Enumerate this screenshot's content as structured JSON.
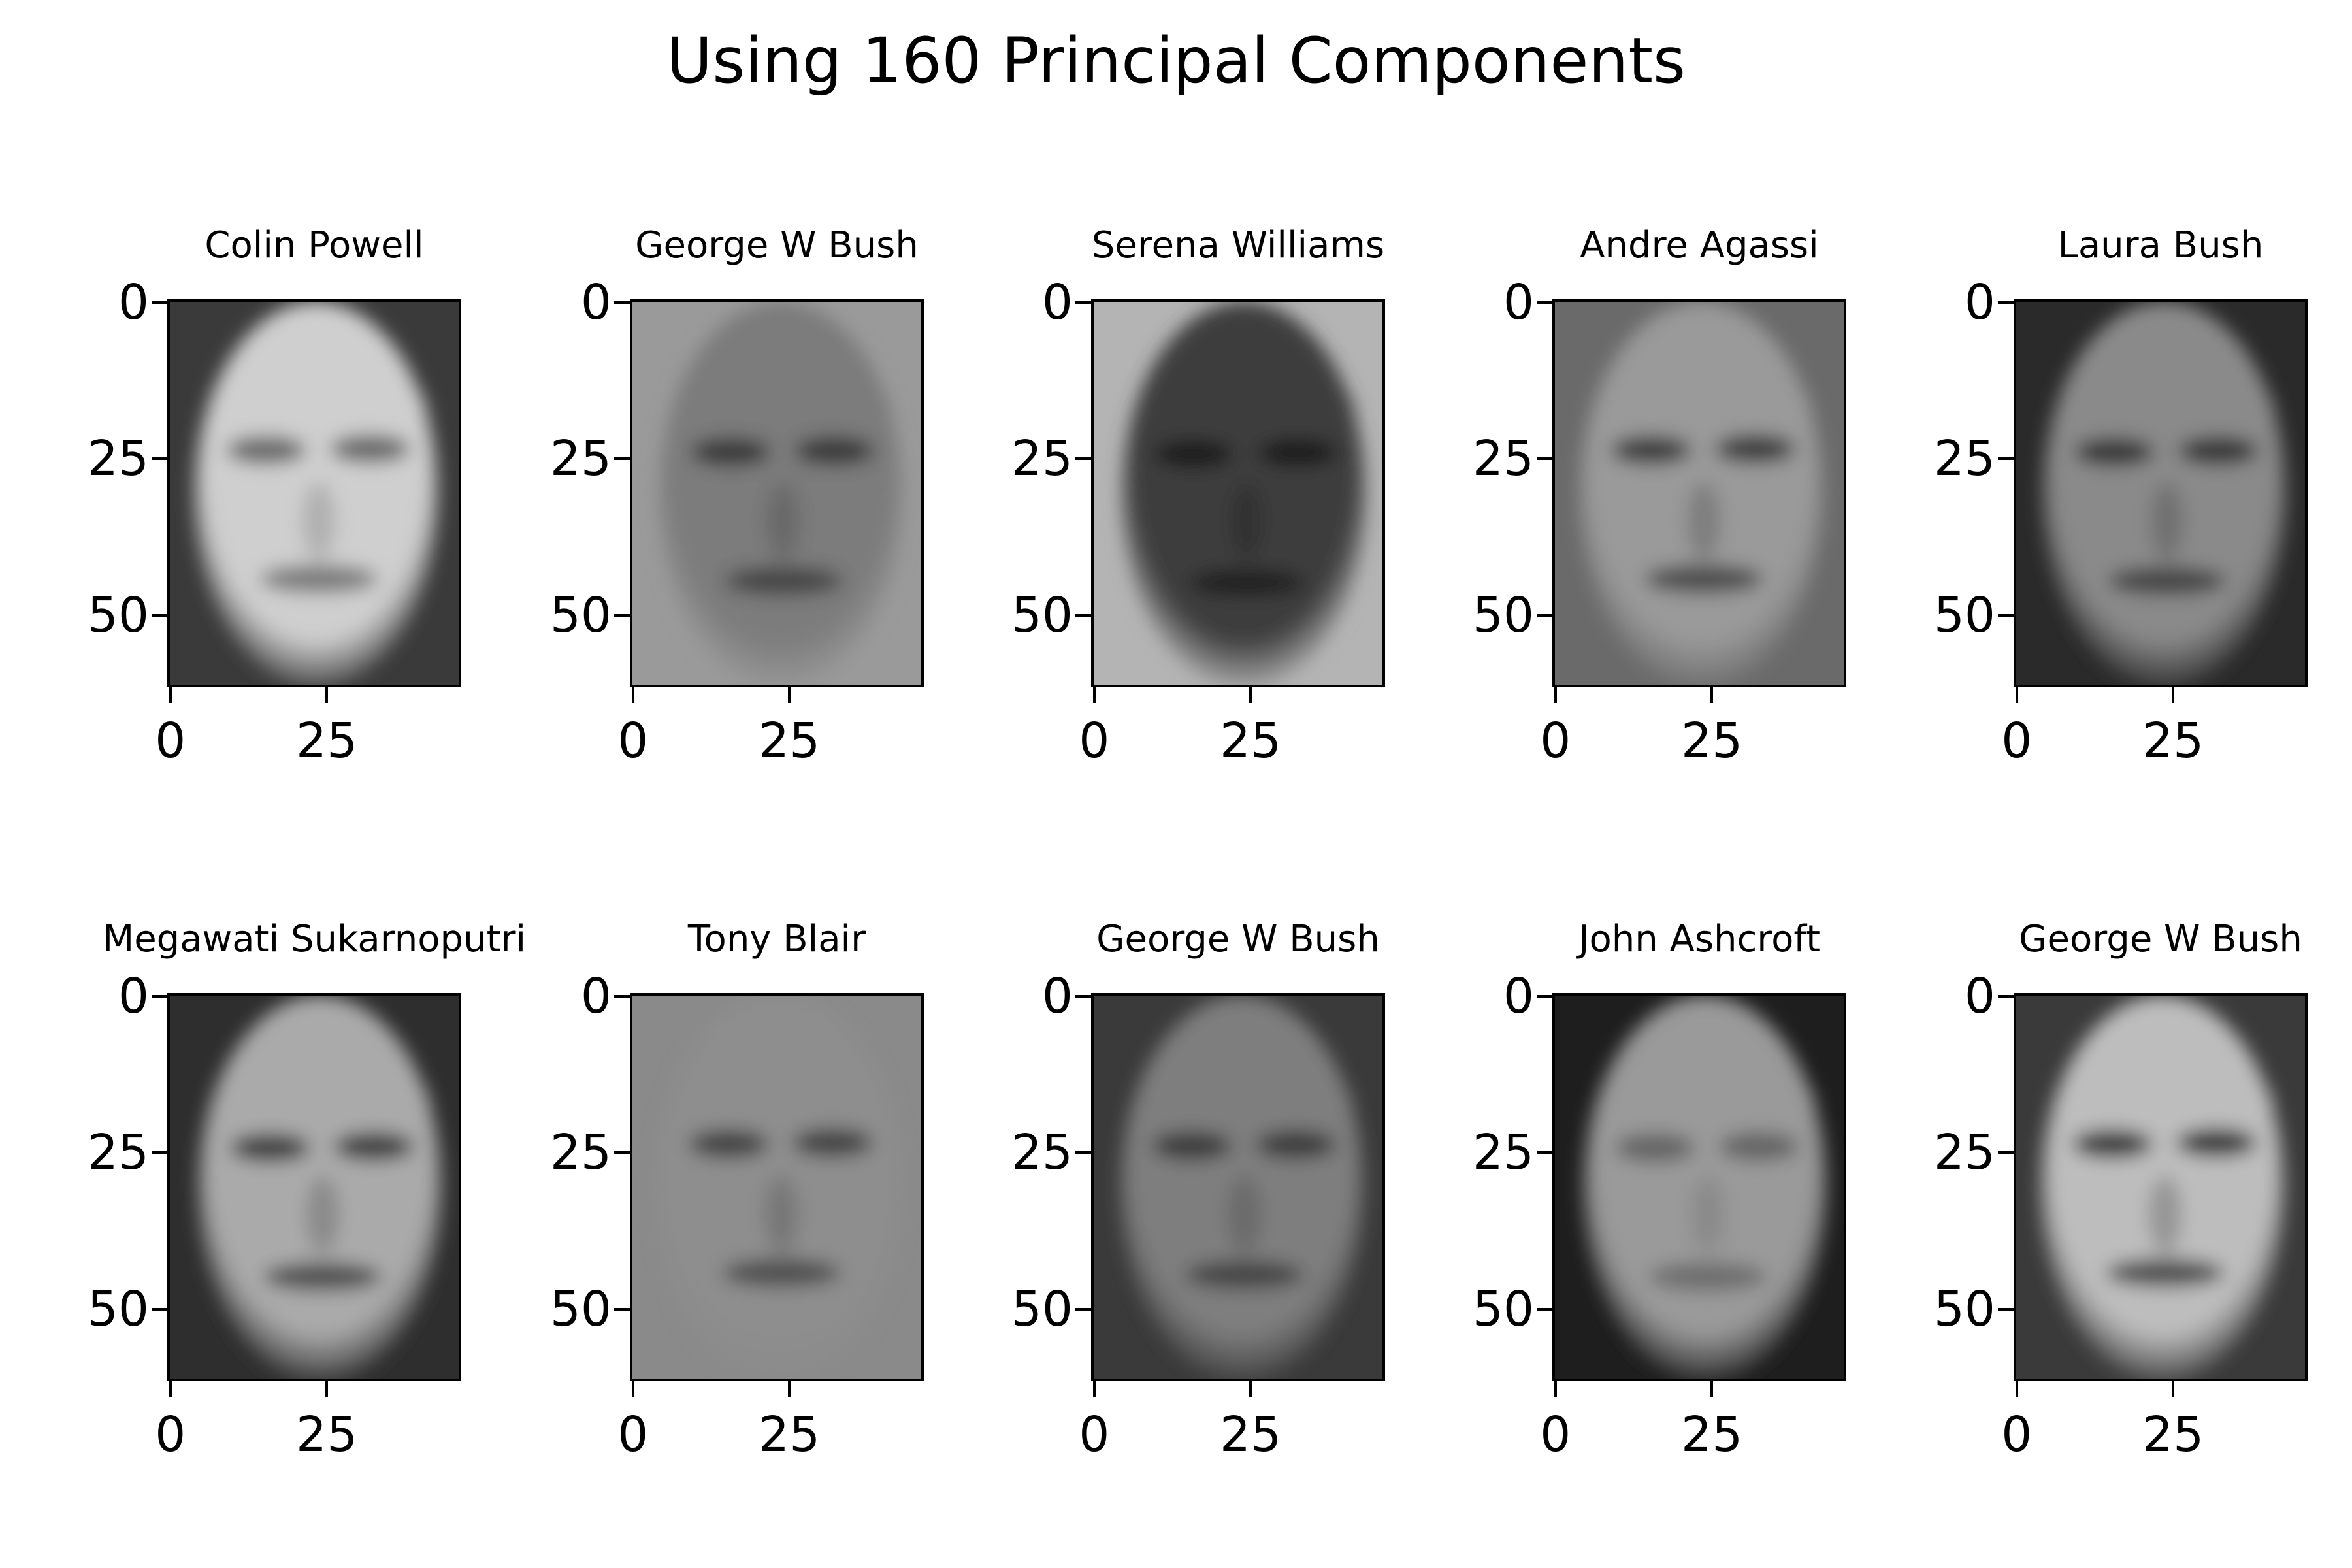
{
  "figure": {
    "title": "Using 160 Principal Components"
  },
  "panels": [
    {
      "title": "Colin Powell",
      "tone": "light",
      "face_colors": {
        "bg": "#3a3a3a",
        "skin": "#cfcfcf",
        "dark": "#555555"
      }
    },
    {
      "title": "George W Bush",
      "tone": "mid",
      "face_colors": {
        "bg": "#9a9a9a",
        "skin": "#7c7c7c",
        "dark": "#2e2e2e"
      }
    },
    {
      "title": "Serena Williams",
      "tone": "dark",
      "face_colors": {
        "bg": "#b4b4b4",
        "skin": "#3c3c3c",
        "dark": "#141414"
      }
    },
    {
      "title": "Andre Agassi",
      "tone": "mid",
      "face_colors": {
        "bg": "#6a6a6a",
        "skin": "#9a9a9a",
        "dark": "#2a2a2a"
      }
    },
    {
      "title": "Laura Bush",
      "tone": "mid",
      "face_colors": {
        "bg": "#2a2a2a",
        "skin": "#8a8a8a",
        "dark": "#262626"
      }
    },
    {
      "title": "Megawati Sukarnoputri",
      "tone": "light",
      "face_colors": {
        "bg": "#2e2e2e",
        "skin": "#aaaaaa",
        "dark": "#2a2a2a"
      }
    },
    {
      "title": "Tony Blair",
      "tone": "mid",
      "face_colors": {
        "bg": "#8a8a8a",
        "skin": "#8e8e8e",
        "dark": "#353535"
      }
    },
    {
      "title": "George W Bush",
      "tone": "mid",
      "face_colors": {
        "bg": "#3a3a3a",
        "skin": "#7e7e7e",
        "dark": "#2e2e2e"
      }
    },
    {
      "title": "John Ashcroft",
      "tone": "mid",
      "face_colors": {
        "bg": "#1e1e1e",
        "skin": "#9a9a9a",
        "dark": "#5a5a5a"
      }
    },
    {
      "title": "George W Bush",
      "tone": "light",
      "face_colors": {
        "bg": "#3a3a3a",
        "skin": "#bdbdbd",
        "dark": "#1e1e1e"
      }
    }
  ],
  "axes": {
    "x_range": [
      -0.5,
      46.5
    ],
    "y_range": [
      61.5,
      -0.5
    ],
    "yticks": [
      0,
      25,
      50
    ],
    "ytick_labels": [
      "0",
      "25",
      "50"
    ],
    "xticks": [
      0,
      25
    ],
    "xtick_labels": [
      "0",
      "25"
    ]
  }
}
